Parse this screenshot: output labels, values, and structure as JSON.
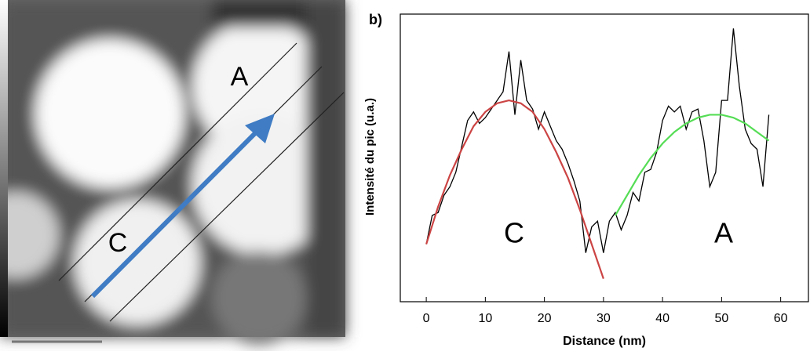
{
  "left_image": {
    "labels": [
      "A",
      "C"
    ]
  },
  "chart_data": {
    "type": "line",
    "panel_label": "b)",
    "x_label": "Distance (nm)",
    "y_label": "Intensité du pic (u.a.)",
    "annotations": [
      "C",
      "A"
    ],
    "xlim": [
      -4.4,
      64.7
    ],
    "xticks": [
      0,
      10,
      20,
      30,
      40,
      50,
      60
    ],
    "ylim": [
      0,
      100
    ],
    "series": [
      {
        "color": "#000000",
        "x": [
          0,
          1,
          2,
          3,
          4,
          5,
          6,
          7,
          8,
          9,
          10,
          11,
          12,
          13,
          14,
          15,
          16,
          17,
          18,
          19,
          20,
          21,
          22,
          23,
          24,
          25,
          26,
          27,
          28,
          29,
          30,
          31,
          32,
          33,
          34,
          35,
          36,
          37,
          38,
          39,
          40,
          41,
          42,
          43,
          44,
          45,
          46,
          47,
          48,
          49,
          50,
          51,
          52,
          53,
          54,
          55,
          56,
          57,
          58
        ],
        "values": [
          20,
          30,
          31,
          37,
          40,
          45,
          54,
          63,
          66,
          62,
          64,
          67,
          70,
          73,
          87,
          65,
          84,
          70,
          67,
          60,
          66,
          61,
          56,
          53,
          48,
          42,
          35,
          17,
          26,
          28,
          17,
          28,
          31,
          25,
          30,
          38,
          35,
          45,
          46,
          52,
          63,
          68,
          66,
          68,
          60,
          66,
          67,
          56,
          40,
          45,
          70,
          70,
          95,
          75,
          60,
          55,
          53,
          40,
          65
        ]
      },
      {
        "color": "#cc4444",
        "x": [
          0,
          2,
          4,
          6,
          8,
          10,
          12,
          14,
          16,
          18,
          20,
          22,
          24,
          26,
          28,
          30
        ],
        "values": [
          20,
          33,
          44,
          53,
          61,
          66,
          69,
          70,
          69,
          66,
          60,
          52,
          43,
          32,
          20,
          8
        ]
      },
      {
        "color": "#55dd55",
        "x": [
          32,
          34,
          36,
          38,
          40,
          42,
          44,
          46,
          48,
          50,
          52,
          54,
          56,
          58
        ],
        "values": [
          30,
          37,
          44,
          50,
          55,
          59,
          62,
          64,
          65,
          65,
          64,
          62,
          59,
          56
        ]
      }
    ]
  }
}
